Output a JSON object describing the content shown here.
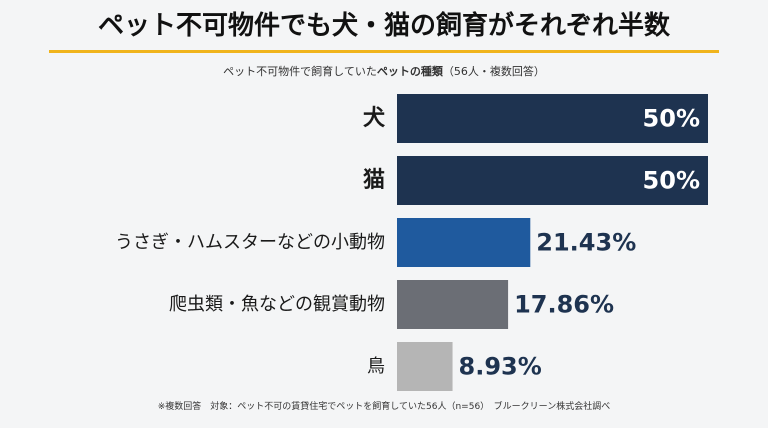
{
  "title": "ペット不可物件でも犬・猫の飼育がそれぞれ半数",
  "subtitle": {
    "prefix": "ペット不可物件で飼育していた",
    "bold": "ペットの種類",
    "suffix": "（56人・複数回答）"
  },
  "footnote": "※複数回答　対象：ペット不可の賃貸住宅でペットを飼育していた56人（n=56）　ブルークリーン株式会社調べ",
  "chart_data": {
    "type": "bar",
    "orientation": "horizontal",
    "categories": [
      "犬",
      "猫",
      "うさぎ・ハムスターなどの小動物",
      "爬虫類・魚などの観賞動物",
      "鳥"
    ],
    "values": [
      50,
      50,
      21.43,
      17.86,
      8.93
    ],
    "value_labels": [
      "50%",
      "50%",
      "21.43%",
      "17.86%",
      "8.93%"
    ],
    "bar_colors": [
      "#1e3350",
      "#1e3350",
      "#1f5a9e",
      "#6b6e75",
      "#b5b5b5"
    ],
    "xlim": [
      0,
      50
    ],
    "grid": false,
    "legend": "none"
  }
}
